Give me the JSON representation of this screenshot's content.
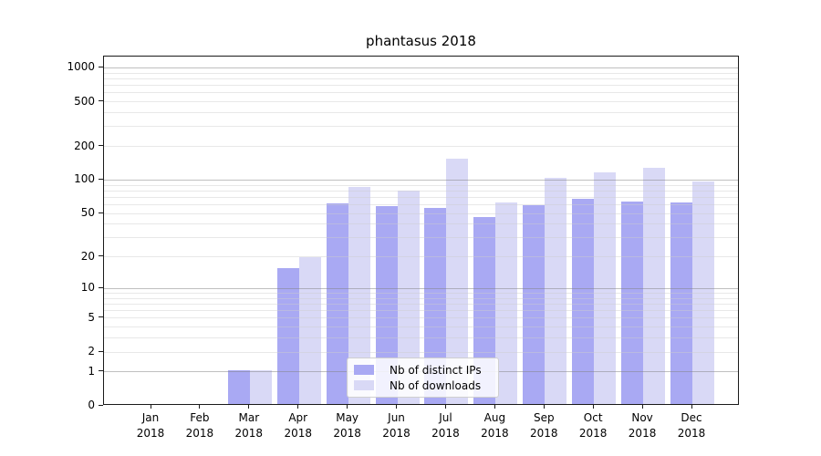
{
  "chart_data": {
    "type": "bar",
    "title": "phantasus 2018",
    "categories": [
      "Jan 2018",
      "Feb 2018",
      "Mar 2018",
      "Apr 2018",
      "May 2018",
      "Jun 2018",
      "Jul 2018",
      "Aug 2018",
      "Sep 2018",
      "Oct 2018",
      "Nov 2018",
      "Dec 2018"
    ],
    "series": [
      {
        "name": "Nb of distinct IPs",
        "color": "#a9a9f3",
        "values": [
          0,
          0,
          1,
          15,
          60,
          56,
          54,
          45,
          57,
          65,
          62,
          61
        ]
      },
      {
        "name": "Nb of downloads",
        "color": "#d9d9f6",
        "values": [
          0,
          0,
          1,
          19,
          83,
          78,
          151,
          61,
          100,
          112,
          123,
          93
        ]
      }
    ],
    "xlabel": "",
    "ylabel": "",
    "y_scale": "log1p",
    "y_ticks": [
      0,
      1,
      2,
      5,
      10,
      20,
      50,
      100,
      200,
      500,
      1000
    ],
    "y_grid_major": [
      1,
      10,
      100,
      1000
    ],
    "ylim": [
      0,
      1260
    ],
    "grid": "horizontal major+minor",
    "legend_position": "inside lower-center"
  }
}
